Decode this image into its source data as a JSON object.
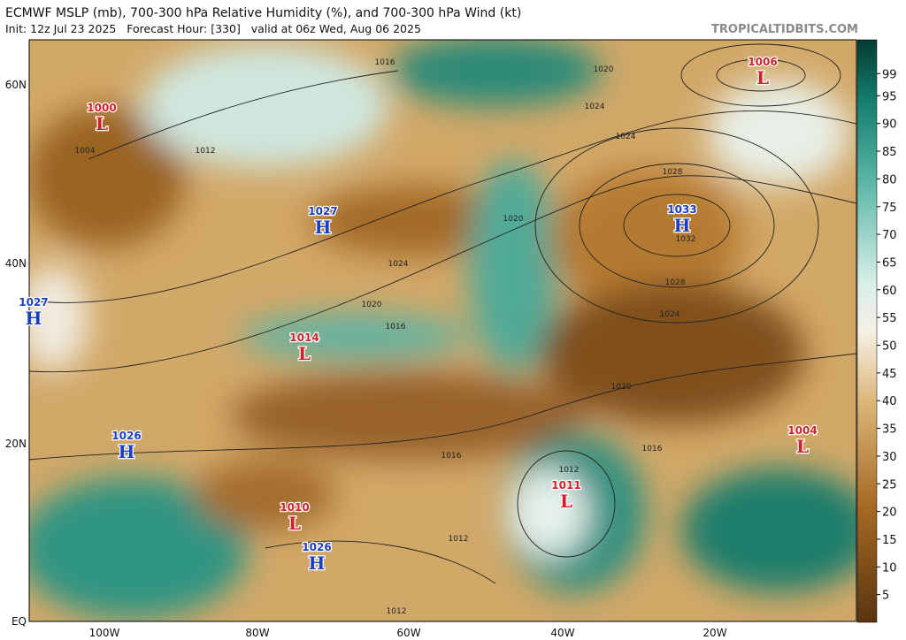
{
  "header": {
    "title": "ECMWF MSLP (mb), 700-300 hPa Relative Humidity (%), and 700-300 hPa Wind (kt)",
    "subtitle": "Init: 12z Jul 23 2025   Forecast Hour: [330]   valid at 06z Wed, Aug 06 2025",
    "credit": "TROPICALTIDBITS.COM"
  },
  "map": {
    "lat_labels": [
      "60N",
      "40N",
      "20N",
      "EQ"
    ],
    "lon_labels": [
      "100W",
      "80W",
      "60W",
      "40W",
      "20W"
    ],
    "centers": [
      {
        "type": "L",
        "pressure": 1000
      },
      {
        "type": "H",
        "pressure": 1027
      },
      {
        "type": "H",
        "pressure": 1027
      },
      {
        "type": "L",
        "pressure": 1014
      },
      {
        "type": "H",
        "pressure": 1026
      },
      {
        "type": "L",
        "pressure": 1010
      },
      {
        "type": "H",
        "pressure": 1026
      },
      {
        "type": "L",
        "pressure": 1011
      },
      {
        "type": "H",
        "pressure": 1033
      },
      {
        "type": "L",
        "pressure": 1006
      },
      {
        "type": "L",
        "pressure": 1004
      }
    ],
    "isobar_labels": [
      1016,
      1020,
      1024,
      1024,
      1028,
      1032,
      1028,
      1024,
      1020,
      1016,
      1016,
      1012,
      1012,
      1012,
      1024,
      1020,
      1016,
      1020,
      1004,
      1012
    ]
  },
  "colorbar": {
    "ticks": [
      99,
      95,
      90,
      85,
      80,
      75,
      70,
      65,
      60,
      55,
      50,
      45,
      40,
      35,
      30,
      25,
      20,
      15,
      10,
      5
    ]
  }
}
